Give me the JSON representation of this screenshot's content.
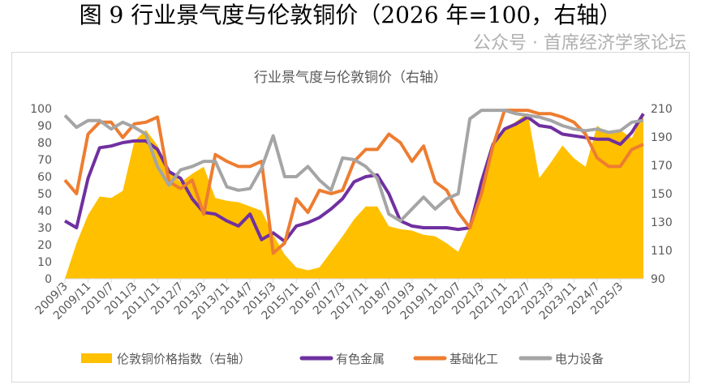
{
  "figure_title": "图 9  行业景气度与伦敦铜价（2026 年=100，右轴）",
  "watermark": "公众号 · 首席经济学家论坛",
  "chart_data": {
    "type": "line",
    "title": "行业景气度与伦敦铜价（右轴）",
    "x": [
      "2009/3",
      "2009/7",
      "2009/11",
      "2010/3",
      "2010/7",
      "2010/11",
      "2011/3",
      "2011/7",
      "2011/11",
      "2012/3",
      "2012/7",
      "2012/11",
      "2013/3",
      "2013/7",
      "2013/11",
      "2014/3",
      "2014/7",
      "2014/11",
      "2015/3",
      "2015/7",
      "2015/11",
      "2016/3",
      "2016/7",
      "2016/11",
      "2017/3",
      "2017/7",
      "2017/11",
      "2018/3",
      "2018/7",
      "2018/11",
      "2019/3",
      "2019/7",
      "2019/11",
      "2020/3",
      "2020/7",
      "2020/11",
      "2021/3",
      "2021/7",
      "2021/11",
      "2022/3",
      "2022/7",
      "2022/11",
      "2023/3",
      "2023/7",
      "2023/11",
      "2024/3",
      "2024/7",
      "2024/11",
      "2025/3",
      "2025/7",
      "2025/11"
    ],
    "tick_labels": [
      "2009/3",
      "2009/11",
      "2010/7",
      "2011/3",
      "2011/11",
      "2012/7",
      "2013/3",
      "2013/11",
      "2014/7",
      "2015/3",
      "2015/11",
      "2016/7",
      "2017/3",
      "2017/11",
      "2018/7",
      "2019/3",
      "2019/11",
      "2020/7",
      "2021/3",
      "2021/11",
      "2022/7",
      "2023/3",
      "2023/11",
      "2024/7",
      "2025/3"
    ],
    "y_left": {
      "range": [
        0,
        100
      ],
      "ticks": [
        0,
        10,
        20,
        30,
        40,
        50,
        60,
        70,
        80,
        90,
        100
      ]
    },
    "y_right": {
      "range": [
        90,
        210
      ],
      "ticks": [
        90,
        110,
        130,
        150,
        170,
        190,
        210
      ]
    },
    "grid": false,
    "legend_position": "bottom",
    "series": [
      {
        "name": "伦敦铜价格指数（右轴）",
        "type": "area",
        "axis": "right",
        "color": "#FFC000",
        "values": [
          90,
          115,
          135,
          148,
          147,
          152,
          187,
          195,
          184,
          167,
          158,
          164,
          169,
          147,
          145,
          144,
          141,
          138,
          121,
          107,
          98,
          96,
          98,
          109,
          120,
          132,
          141,
          141,
          127,
          125,
          124,
          121,
          120,
          115,
          109,
          127,
          155,
          184,
          195,
          201,
          207,
          161,
          172,
          184,
          175,
          169,
          198,
          192,
          195,
          189,
          207
        ]
      },
      {
        "name": "有色金属",
        "type": "line",
        "axis": "left",
        "color": "#7030A0",
        "values": [
          34,
          30,
          59,
          77,
          78,
          80,
          81,
          81,
          76,
          63,
          59,
          47,
          39,
          38,
          34,
          31,
          38,
          23,
          27,
          22,
          31,
          33,
          36,
          41,
          47,
          57,
          60,
          61,
          50,
          34,
          31,
          30,
          30,
          30,
          29,
          30,
          57,
          79,
          88,
          91,
          95,
          90,
          89,
          85,
          84,
          83,
          82,
          82,
          79,
          86,
          97
        ]
      },
      {
        "name": "基础化工",
        "type": "line",
        "axis": "left",
        "color": "#ED7D31",
        "values": [
          58,
          50,
          85,
          92,
          92,
          83,
          91,
          92,
          95,
          57,
          53,
          58,
          38,
          73,
          69,
          66,
          66,
          69,
          15,
          21,
          47,
          39,
          52,
          50,
          52,
          69,
          76,
          76,
          85,
          80,
          69,
          78,
          57,
          52,
          39,
          30,
          50,
          78,
          99,
          99,
          99,
          97,
          97,
          95,
          92,
          85,
          71,
          66,
          66,
          76,
          79
        ]
      },
      {
        "name": "电力设备",
        "type": "line",
        "axis": "left",
        "color": "#A5A5A5",
        "values": [
          96,
          89,
          93,
          93,
          88,
          92,
          89,
          85,
          66,
          55,
          64,
          66,
          69,
          69,
          54,
          52,
          53,
          65,
          84,
          60,
          60,
          66,
          58,
          52,
          71,
          70,
          66,
          59,
          38,
          34,
          41,
          48,
          41,
          47,
          50,
          94,
          99,
          99,
          99,
          97,
          96,
          95,
          93,
          90,
          88,
          87,
          88,
          86,
          87,
          92,
          93
        ]
      }
    ]
  }
}
